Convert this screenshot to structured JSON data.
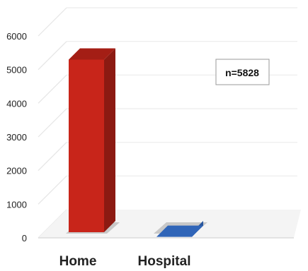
{
  "chart_data": {
    "type": "bar",
    "categories": [
      "Home",
      "Hospital"
    ],
    "values": [
      5550,
      280
    ],
    "ylim": [
      0,
      6000
    ],
    "yticks": [
      "0",
      "1000",
      "2000",
      "3000",
      "4000",
      "5000",
      "6000"
    ],
    "grid": true,
    "legend": "none",
    "annotation": "n=5828",
    "colors": {
      "Home": "#c8251a",
      "Hospital": "#3a7be0"
    },
    "style": "3d-bars"
  }
}
